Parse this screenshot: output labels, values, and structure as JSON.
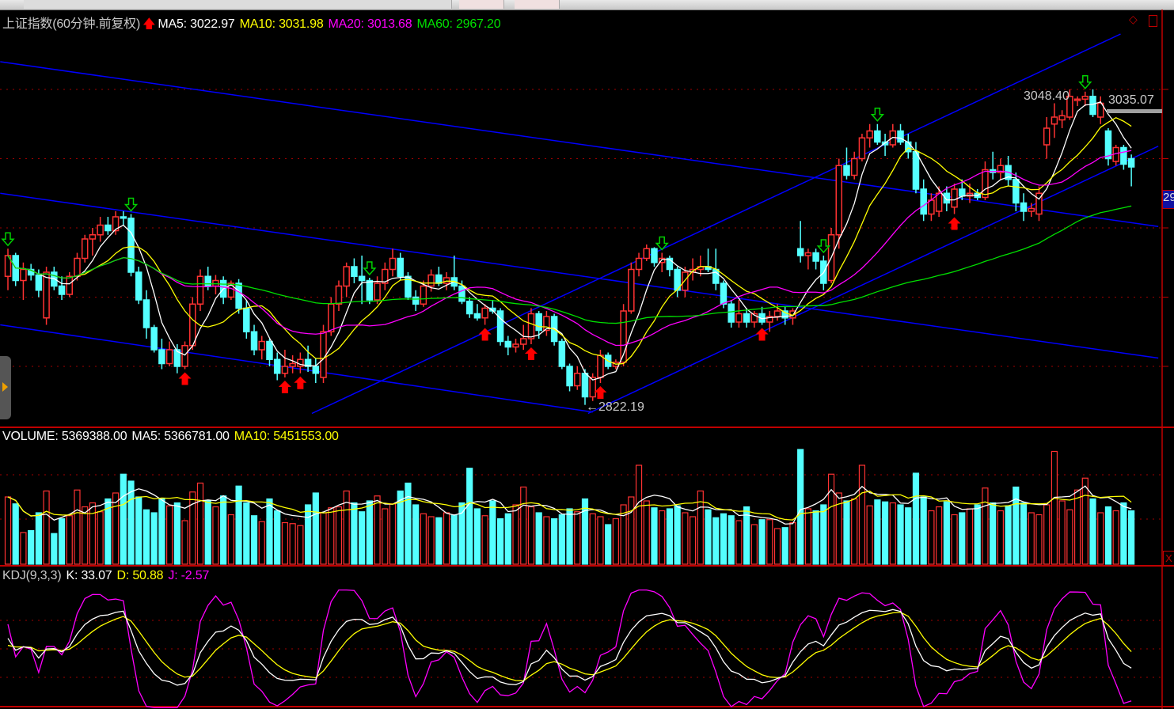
{
  "header": {
    "title": "上证指数(60分钟.前复权)",
    "ma5": "MA5: 3022.97",
    "ma10": "MA10: 3031.98",
    "ma20": "MA20: 3013.68",
    "ma60": "MA60: 2967.20",
    "signal_icon": "red-up-arrow-icon"
  },
  "volume_panel": {
    "volume": "VOLUME: 5369388.00",
    "ma5": "MA5: 5366781.00",
    "ma10": "MA10: 5451553.00"
  },
  "kdj_panel": {
    "name": "KDJ(9,3,3)",
    "k": "K: 33.07",
    "d": "D: 50.88",
    "j": "J: -2.57"
  },
  "annotations": {
    "high_label": "3048.40",
    "right_label": "3035.07",
    "low_label": "2822.19",
    "axis_box_text": "29",
    "close_box_text": "X"
  },
  "colors": {
    "background": "#000000",
    "up": "#ff3232",
    "down": "#54ffff",
    "ma5": "#ffffff",
    "ma10": "#ffff00",
    "ma20": "#ff00ff",
    "ma60": "#00e000",
    "trend": "#0000ff",
    "grid": "#a00000",
    "buy_signal": "#ff0000",
    "sell_signal": "#00d000"
  },
  "chart_data": {
    "type": "candlestick",
    "price_gridlines": [
      2850,
      2900,
      2950,
      3000,
      3050
    ],
    "ylim": [
      2790,
      3105
    ],
    "ohlc": [
      [
        2915,
        2935,
        2905,
        2930
      ],
      [
        2930,
        2932,
        2908,
        2912
      ],
      [
        2912,
        2925,
        2898,
        2920
      ],
      [
        2920,
        2924,
        2912,
        2916
      ],
      [
        2916,
        2920,
        2900,
        2905
      ],
      [
        2885,
        2922,
        2880,
        2918
      ],
      [
        2918,
        2922,
        2905,
        2908
      ],
      [
        2908,
        2915,
        2898,
        2902
      ],
      [
        2902,
        2918,
        2900,
        2915
      ],
      [
        2915,
        2932,
        2912,
        2928
      ],
      [
        2928,
        2945,
        2925,
        2942
      ],
      [
        2942,
        2950,
        2930,
        2945
      ],
      [
        2945,
        2958,
        2940,
        2952
      ],
      [
        2952,
        2958,
        2945,
        2948
      ],
      [
        2948,
        2962,
        2945,
        2958
      ],
      [
        2958,
        2962,
        2952,
        2957
      ],
      [
        2957,
        2960,
        2915,
        2918
      ],
      [
        2918,
        2922,
        2895,
        2898
      ],
      [
        2898,
        2905,
        2870,
        2878
      ],
      [
        2878,
        2880,
        2860,
        2862
      ],
      [
        2862,
        2870,
        2848,
        2852
      ],
      [
        2852,
        2868,
        2850,
        2862
      ],
      [
        2862,
        2866,
        2845,
        2850
      ],
      [
        2850,
        2868,
        2848,
        2865
      ],
      [
        2865,
        2900,
        2862,
        2895
      ],
      [
        2895,
        2920,
        2890,
        2915
      ],
      [
        2915,
        2922,
        2905,
        2908
      ],
      [
        2908,
        2916,
        2902,
        2912
      ],
      [
        2912,
        2915,
        2895,
        2900
      ],
      [
        2900,
        2912,
        2898,
        2910
      ],
      [
        2910,
        2913,
        2888,
        2892
      ],
      [
        2892,
        2898,
        2870,
        2875
      ],
      [
        2875,
        2880,
        2858,
        2862
      ],
      [
        2862,
        2872,
        2855,
        2868
      ],
      [
        2868,
        2870,
        2850,
        2855
      ],
      [
        2855,
        2860,
        2840,
        2845
      ],
      [
        2845,
        2862,
        2842,
        2850
      ],
      [
        2850,
        2858,
        2845,
        2852
      ],
      [
        2850,
        2860,
        2845,
        2855
      ],
      [
        2855,
        2865,
        2846,
        2850
      ],
      [
        2850,
        2856,
        2838,
        2845
      ],
      [
        2842,
        2880,
        2838,
        2875
      ],
      [
        2875,
        2900,
        2872,
        2895
      ],
      [
        2895,
        2912,
        2890,
        2908
      ],
      [
        2908,
        2925,
        2900,
        2922
      ],
      [
        2922,
        2928,
        2910,
        2915
      ],
      [
        2915,
        2930,
        2895,
        2912
      ],
      [
        2912,
        2914,
        2895,
        2898
      ],
      [
        2898,
        2915,
        2895,
        2910
      ],
      [
        2910,
        2925,
        2905,
        2920
      ],
      [
        2920,
        2935,
        2915,
        2928
      ],
      [
        2928,
        2932,
        2912,
        2915
      ],
      [
        2915,
        2918,
        2898,
        2900
      ],
      [
        2900,
        2905,
        2890,
        2895
      ],
      [
        2895,
        2912,
        2893,
        2908
      ],
      [
        2908,
        2920,
        2904,
        2916
      ],
      [
        2916,
        2922,
        2908,
        2910
      ],
      [
        2910,
        2918,
        2905,
        2914
      ],
      [
        2914,
        2930,
        2905,
        2908
      ],
      [
        2908,
        2912,
        2895,
        2897
      ],
      [
        2897,
        2900,
        2885,
        2888
      ],
      [
        2888,
        2895,
        2883,
        2885
      ],
      [
        2885,
        2895,
        2880,
        2892
      ],
      [
        2892,
        2898,
        2888,
        2890
      ],
      [
        2890,
        2892,
        2865,
        2868
      ],
      [
        2868,
        2872,
        2858,
        2864
      ],
      [
        2864,
        2870,
        2860,
        2866
      ],
      [
        2866,
        2880,
        2862,
        2870
      ],
      [
        2870,
        2892,
        2866,
        2888
      ],
      [
        2888,
        2890,
        2870,
        2876
      ],
      [
        2876,
        2890,
        2872,
        2886
      ],
      [
        2886,
        2888,
        2865,
        2868
      ],
      [
        2868,
        2870,
        2848,
        2850
      ],
      [
        2850,
        2852,
        2832,
        2836
      ],
      [
        2836,
        2850,
        2833,
        2845
      ],
      [
        2845,
        2848,
        2822.19,
        2828
      ],
      [
        2828,
        2845,
        2825,
        2842
      ],
      [
        2842,
        2862,
        2838,
        2858
      ],
      [
        2858,
        2860,
        2848,
        2850
      ],
      [
        2850,
        2855,
        2848,
        2853
      ],
      [
        2853,
        2895,
        2850,
        2890
      ],
      [
        2890,
        2925,
        2888,
        2920
      ],
      [
        2920,
        2932,
        2915,
        2928
      ],
      [
        2928,
        2938,
        2926,
        2935
      ],
      [
        2935,
        2936,
        2922,
        2925
      ],
      [
        2925,
        2932,
        2918,
        2928
      ],
      [
        2928,
        2930,
        2915,
        2920
      ],
      [
        2920,
        2922,
        2900,
        2905
      ],
      [
        2905,
        2922,
        2900,
        2918
      ],
      [
        2918,
        2928,
        2912,
        2920
      ],
      [
        2920,
        2930,
        2915,
        2922
      ],
      [
        2922,
        2935,
        2918,
        2920
      ],
      [
        2920,
        2935,
        2905,
        2910
      ],
      [
        2910,
        2912,
        2892,
        2895
      ],
      [
        2895,
        2898,
        2878,
        2882
      ],
      [
        2882,
        2898,
        2878,
        2888
      ],
      [
        2888,
        2892,
        2878,
        2882
      ],
      [
        2882,
        2890,
        2878,
        2888
      ],
      [
        2888,
        2893,
        2880,
        2882
      ],
      [
        2882,
        2890,
        2875,
        2886
      ],
      [
        2886,
        2895,
        2883,
        2890
      ],
      [
        2890,
        2893,
        2880,
        2885
      ],
      [
        2885,
        2892,
        2880,
        2890
      ],
      [
        2935,
        2955,
        2925,
        2930
      ],
      [
        2930,
        2935,
        2920,
        2932
      ],
      [
        2932,
        2935,
        2920,
        2926
      ],
      [
        2926,
        2930,
        2905,
        2910
      ],
      [
        2912,
        2950,
        2910,
        2945
      ],
      [
        2945,
        3000,
        2935,
        2995
      ],
      [
        2995,
        3008,
        2985,
        2988
      ],
      [
        2988,
        3005,
        2985,
        3000
      ],
      [
        3000,
        3018,
        2998,
        3015
      ],
      [
        3015,
        3025,
        3008,
        3020
      ],
      [
        3020,
        3025,
        3010,
        3012
      ],
      [
        3012,
        3018,
        3002,
        3010
      ],
      [
        3010,
        3025,
        3008,
        3020
      ],
      [
        3020,
        3025,
        3010,
        3012
      ],
      [
        3012,
        3018,
        3000,
        3005
      ],
      [
        3005,
        3012,
        2975,
        2978
      ],
      [
        2978,
        2985,
        2955,
        2960
      ],
      [
        2960,
        2975,
        2955,
        2970
      ],
      [
        2962,
        2980,
        2958,
        2975
      ],
      [
        2975,
        2980,
        2962,
        2968
      ],
      [
        2965,
        2982,
        2960,
        2978
      ],
      [
        2978,
        2985,
        2970,
        2973
      ],
      [
        2973,
        2982,
        2968,
        2975
      ],
      [
        2975,
        2978,
        2970,
        2972
      ],
      [
        2972,
        2998,
        2970,
        2992
      ],
      [
        2992,
        3005,
        2985,
        2990
      ],
      [
        2990,
        3000,
        2985,
        2995
      ],
      [
        2995,
        3002,
        2980,
        2985
      ],
      [
        2985,
        2990,
        2962,
        2968
      ],
      [
        2968,
        2975,
        2955,
        2962
      ],
      [
        2962,
        2968,
        2958,
        2964
      ],
      [
        2960,
        2980,
        2955,
        2975
      ],
      [
        3010,
        3030,
        3000,
        3022
      ],
      [
        3025,
        3040,
        3015,
        3030
      ],
      [
        3028,
        3035,
        3022,
        3031
      ],
      [
        3030,
        3050,
        3028,
        3045
      ],
      [
        3042,
        3045,
        3038,
        3043
      ],
      [
        3043,
        3048.4,
        3038,
        3045
      ],
      [
        3045,
        3050,
        3030,
        3032
      ],
      [
        3030,
        3045,
        3025,
        3040
      ],
      [
        3020,
        3022,
        2995,
        3000
      ],
      [
        2998,
        3010,
        2995,
        3008
      ],
      [
        3008,
        3010,
        2992,
        2996
      ],
      [
        3000,
        3003,
        2980,
        2994
      ]
    ],
    "volume": [
      6800000,
      6100000,
      3200000,
      3400000,
      5200000,
      7400000,
      3100000,
      4600000,
      4900000,
      7500000,
      5800000,
      6200000,
      5300000,
      6600000,
      7200000,
      9100000,
      8400000,
      6800000,
      5500000,
      5200000,
      6600000,
      5900000,
      6200000,
      4400000,
      7300000,
      8200000,
      6400000,
      5800000,
      6900000,
      5000000,
      7900000,
      6200000,
      4900000,
      4300000,
      6600000,
      5400000,
      4200000,
      4100000,
      3900000,
      6000000,
      7200000,
      5200000,
      5700000,
      5800000,
      7400000,
      6200000,
      5300000,
      6400000,
      6900000,
      5600000,
      6100000,
      7400000,
      8200000,
      6000000,
      5100000,
      4800000,
      4700000,
      5200000,
      5000000,
      6200000,
      9700000,
      5600000,
      4900000,
      6400000,
      4600000,
      5100000,
      6000000,
      7800000,
      5800000,
      5200000,
      4800000,
      4600000,
      5000000,
      5600000,
      5300000,
      6600000,
      5100000,
      4800000,
      4000000,
      4600000,
      6000000,
      6800000,
      10000000,
      6400000,
      5700000,
      5400000,
      5600000,
      5900000,
      5200000,
      4800000,
      7400000,
      5500000,
      4700000,
      5100000,
      4900000,
      4400000,
      5800000,
      4000000,
      4500000,
      4500000,
      3600000,
      3700000,
      4200000,
      11600000,
      5600000,
      5400000,
      6000000,
      9100000,
      7200000,
      6400000,
      6600000,
      10000000,
      5900000,
      6500000,
      6300000,
      6200000,
      6000000,
      5700000,
      9200000,
      6800000,
      5400000,
      5800000,
      6300000,
      5000000,
      5200000,
      5600000,
      6000000,
      7700000,
      6200000,
      5400000,
      5900000,
      7800000,
      6200000,
      5200000,
      5000000,
      6000000,
      11400000,
      6400000,
      5500000,
      7500000,
      8700000,
      6600000,
      5200000,
      5800000,
      5400000,
      6200000,
      5400000
    ],
    "trend_lines": [
      {
        "from": [
          -1,
          3070
        ],
        "to": [
          149.5,
          2951
        ]
      },
      {
        "from": [
          -1,
          2975
        ],
        "to": [
          149.5,
          2856
        ]
      },
      {
        "from": [
          -1,
          2880
        ],
        "to": [
          76,
          2817
        ]
      },
      {
        "from": [
          39.5,
          2816
        ],
        "to": [
          144.6,
          3090
        ]
      },
      {
        "from": [
          75.4,
          2816
        ],
        "to": [
          149.5,
          3009
        ]
      }
    ],
    "sell_signals": [
      0,
      16,
      47,
      85,
      106,
      113,
      140
    ],
    "buy_signals": [
      23,
      36,
      38,
      62,
      68,
      77,
      98,
      123
    ],
    "ma_periods": [
      5,
      10,
      20,
      60
    ],
    "volume_ma_periods": [
      5,
      10
    ],
    "kdj_params": [
      9,
      3,
      3
    ]
  }
}
